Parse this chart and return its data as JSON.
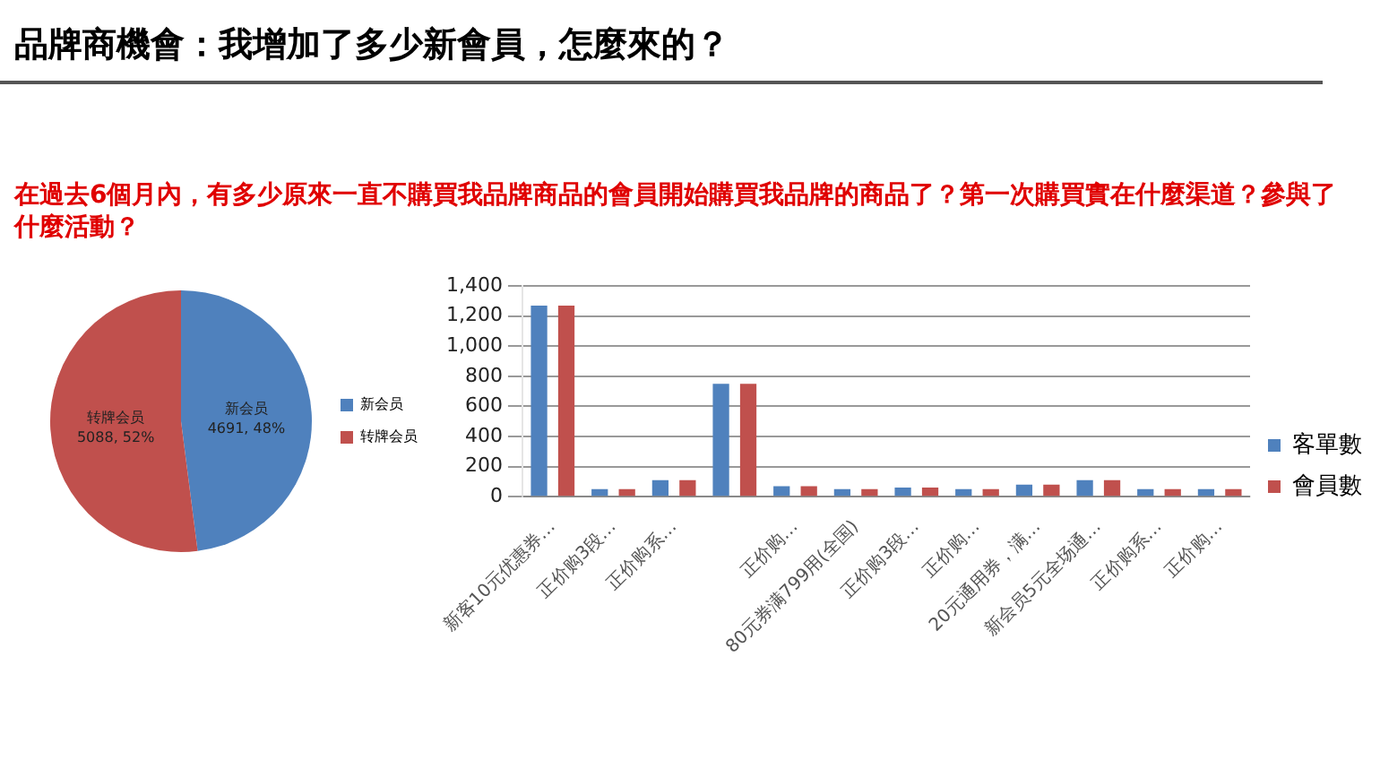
{
  "chart_data": [
    {
      "type": "pie",
      "title": "品牌商機會：我增加了多少新會員，怎麼來的？",
      "subtitle": "在過去6個月內，有多少原來一直不購買我品牌商品的會員開始購買我品牌的商品了？第一次購買實在什麼渠道？參與了什麼活動？",
      "categories": [
        "新会员",
        "转牌会员"
      ],
      "values": [
        4691,
        5088
      ],
      "colors": [
        "#4f81bd",
        "#c0504d"
      ],
      "value_labels": [
        "4691, 48%",
        "5088, 52%"
      ],
      "legend": "right"
    },
    {
      "type": "bar",
      "categories": [
        "新客10元优惠券…",
        "正价购3段…",
        "正价购系…",
        null,
        "正价购…",
        "80元券满799用(全国)",
        "正价购3段…",
        "正价购…",
        "20元通用券，满…",
        "新会员5元全场通…",
        "正价购系…",
        "正价购…"
      ],
      "series": [
        {
          "name": "客單數",
          "color": "#4f81bd",
          "values": [
            1270,
            50,
            110,
            750,
            70,
            50,
            60,
            50,
            80,
            110,
            50,
            50
          ]
        },
        {
          "name": "會員數",
          "color": "#c0504d",
          "values": [
            1270,
            50,
            110,
            750,
            70,
            50,
            60,
            50,
            80,
            110,
            50,
            50
          ]
        }
      ],
      "ylim": [
        0,
        1400
      ],
      "yticks": [
        0,
        200,
        400,
        600,
        800,
        {
          "value": 1000,
          "label": "1,000"
        },
        {
          "value": 1200,
          "label": "1,200"
        },
        {
          "value": 1400,
          "label": "1,400"
        }
      ],
      "grid": "y",
      "legend": "right"
    }
  ]
}
